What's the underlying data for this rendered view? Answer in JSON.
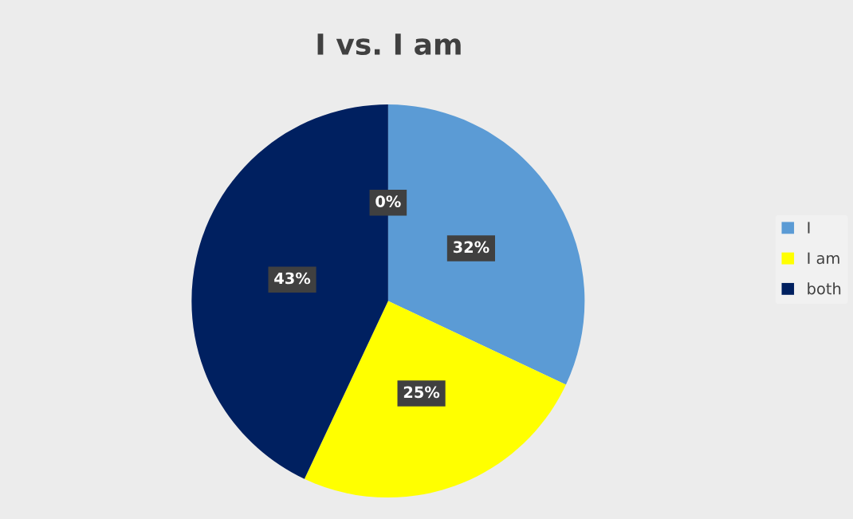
{
  "chart_data": {
    "type": "pie",
    "title": "I vs. I am",
    "categories": [
      "I",
      "I am",
      "both",
      null
    ],
    "values": [
      32,
      25,
      43,
      0
    ],
    "colors": [
      "#5b9bd5",
      "#ffff00",
      "#002060",
      "#a5a5a5"
    ],
    "value_labels": [
      "32%",
      "25%",
      "43%",
      "0%"
    ],
    "legend": "right"
  }
}
